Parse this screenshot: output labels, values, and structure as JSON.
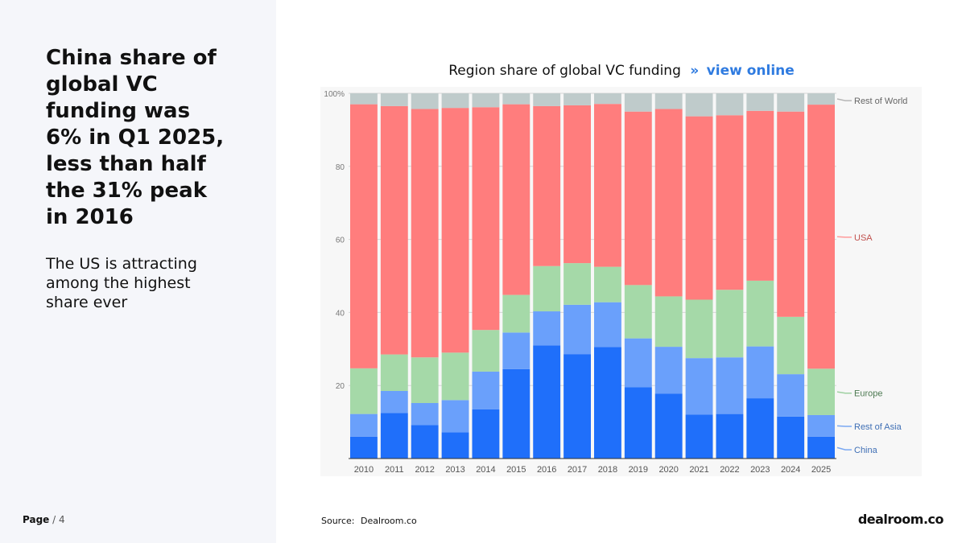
{
  "headline": "China share of global VC funding was 6% in Q1 2025, less than half the 31% peak in 2016",
  "subtext": "The US is attracting among the highest share ever",
  "page": {
    "label": "Page",
    "separator": "/",
    "number": "4"
  },
  "source": {
    "label": "Source:",
    "value": "Dealroom.co"
  },
  "logo_text": "dealroom.co",
  "chart_title": {
    "text": "Region share of global VC funding",
    "arrows": "»",
    "link": "view online"
  },
  "colors": {
    "China": "#1f6ffa",
    "Rest of Asia": "#6aa0fb",
    "Europe": "#a5d9a8",
    "USA": "#ff7d7d",
    "Rest of World": "#bfcbcb",
    "link": "#2f7be0"
  },
  "chart_data": {
    "type": "bar",
    "stacked": true,
    "title": "Region share of global VC funding",
    "categories": [
      "2010",
      "2011",
      "2012",
      "2013",
      "2014",
      "2015",
      "2016",
      "2017",
      "2018",
      "2019",
      "2020",
      "2021",
      "2022",
      "2023",
      "2024",
      "2025"
    ],
    "series": [
      {
        "name": "China",
        "values": [
          6,
          12.5,
          9.2,
          7.2,
          13.5,
          24.5,
          31,
          28.6,
          30.5,
          19.5,
          17.8,
          12,
          12.2,
          16.5,
          11.5,
          6
        ]
      },
      {
        "name": "Rest of Asia",
        "values": [
          6.2,
          6,
          6,
          8.8,
          10.3,
          10,
          9.3,
          13.5,
          12.3,
          13.4,
          12.8,
          15.5,
          15.5,
          14.2,
          11.6,
          5.9
        ]
      },
      {
        "name": "Europe",
        "values": [
          12.5,
          10,
          12.5,
          13,
          11.4,
          10.3,
          12.4,
          11.4,
          9.7,
          14.6,
          13.8,
          16,
          18.5,
          18,
          15.7,
          12.7
        ]
      },
      {
        "name": "USA",
        "values": [
          72.3,
          68,
          68,
          67,
          61,
          52.2,
          43.8,
          43.2,
          44.6,
          47.5,
          51.3,
          50.2,
          47.8,
          46.5,
          56.2,
          72.3
        ]
      },
      {
        "name": "Rest of World",
        "values": [
          3,
          3.5,
          4.3,
          4,
          3.8,
          3,
          3.5,
          3.3,
          2.9,
          5,
          4.3,
          6.3,
          6,
          4.8,
          5,
          3.1
        ]
      }
    ],
    "y_ticks": [
      "100%",
      "80",
      "60",
      "40",
      "20"
    ],
    "y_tick_values": [
      100,
      80,
      60,
      40,
      20
    ],
    "ylim": [
      0,
      100
    ],
    "legend": [
      "Rest of World",
      "USA",
      "Europe",
      "Rest of Asia",
      "China"
    ],
    "legend_position": "right"
  }
}
